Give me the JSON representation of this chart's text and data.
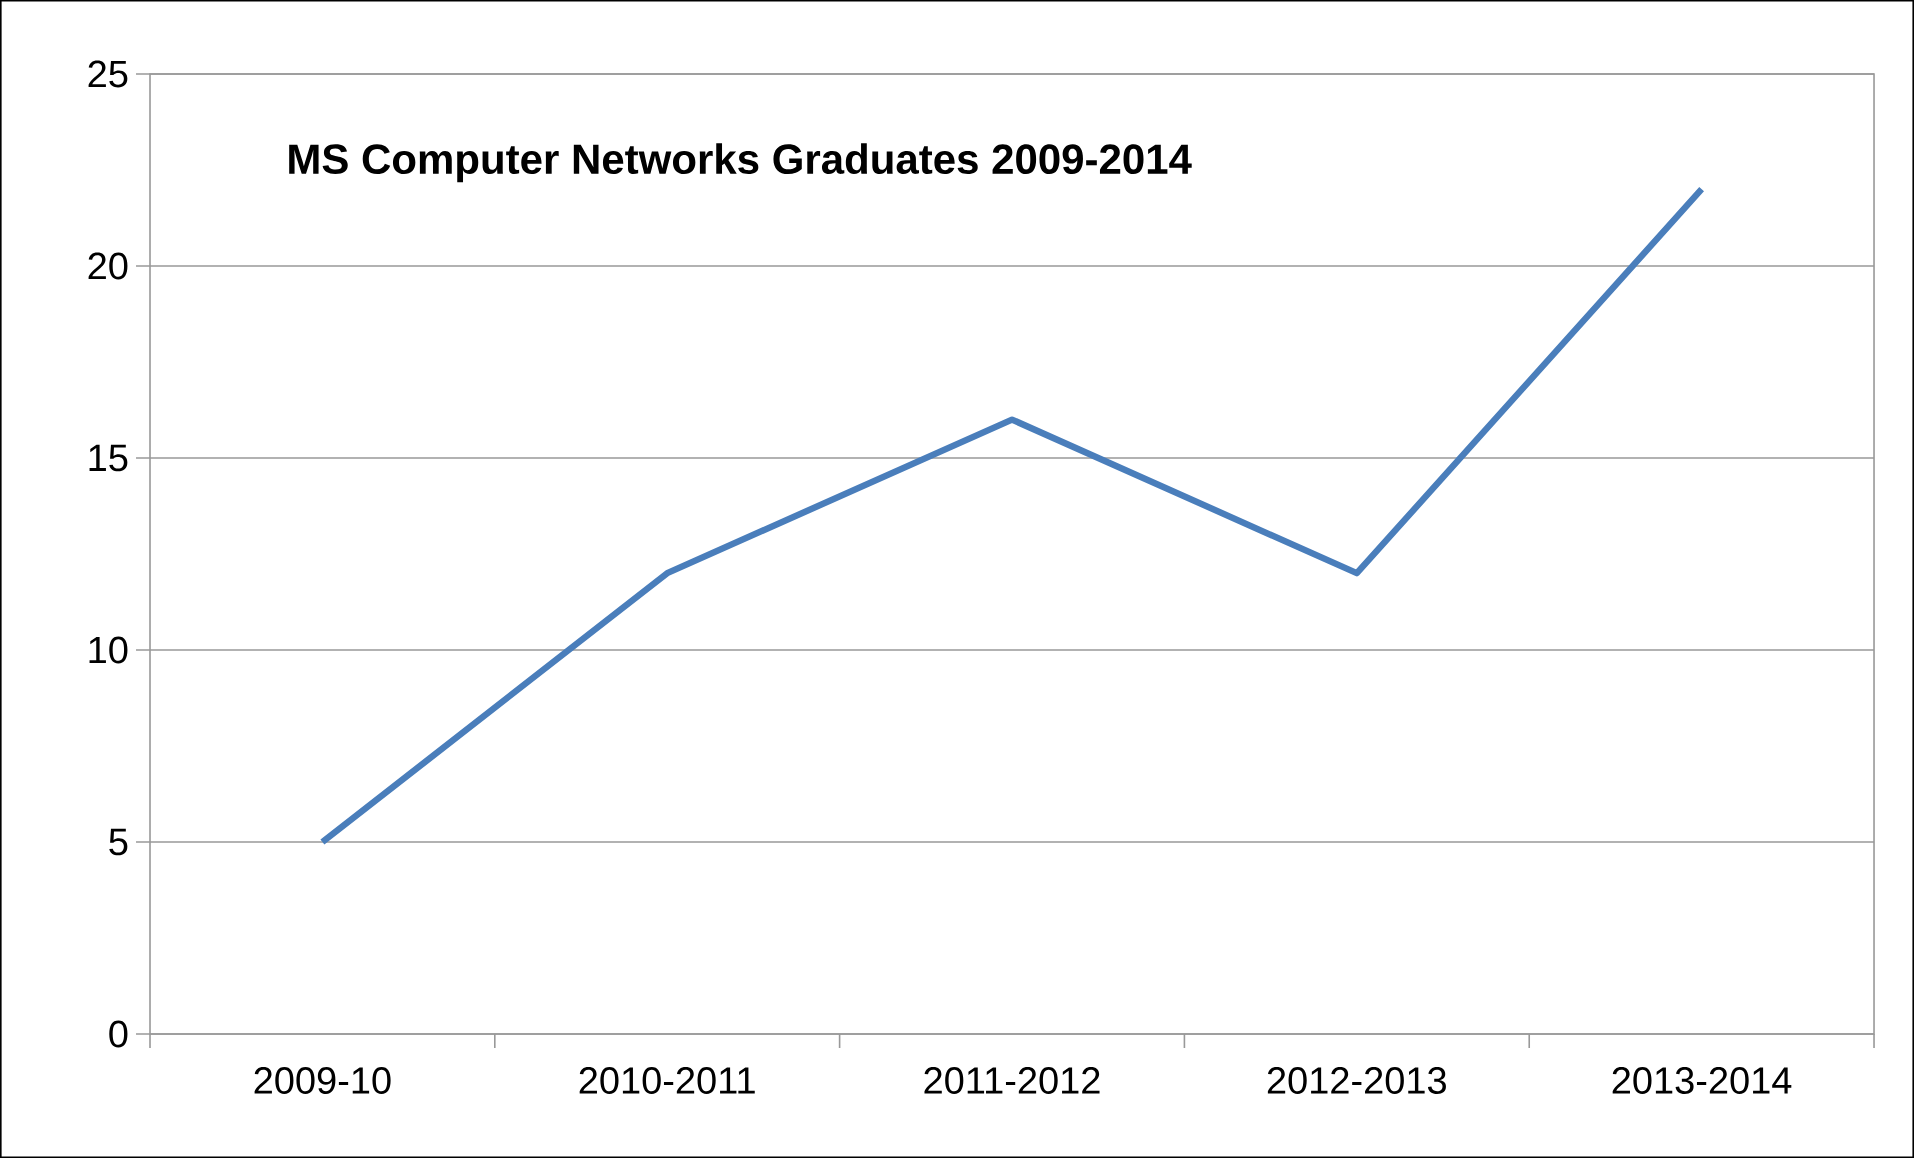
{
  "chart_data": {
    "type": "line",
    "title": "MS Computer Networks Graduates 2009-2014",
    "categories": [
      "2009-10",
      "2010-2011",
      "2011-2012",
      "2012-2013",
      "2013-2014"
    ],
    "values": [
      5,
      12,
      16,
      12,
      22
    ],
    "color": "#4a7ebb",
    "ylim": [
      0,
      25
    ],
    "yticks": [
      0,
      5,
      10,
      15,
      20,
      25
    ],
    "grid": "y",
    "marker": "none",
    "line_style": "solid"
  }
}
